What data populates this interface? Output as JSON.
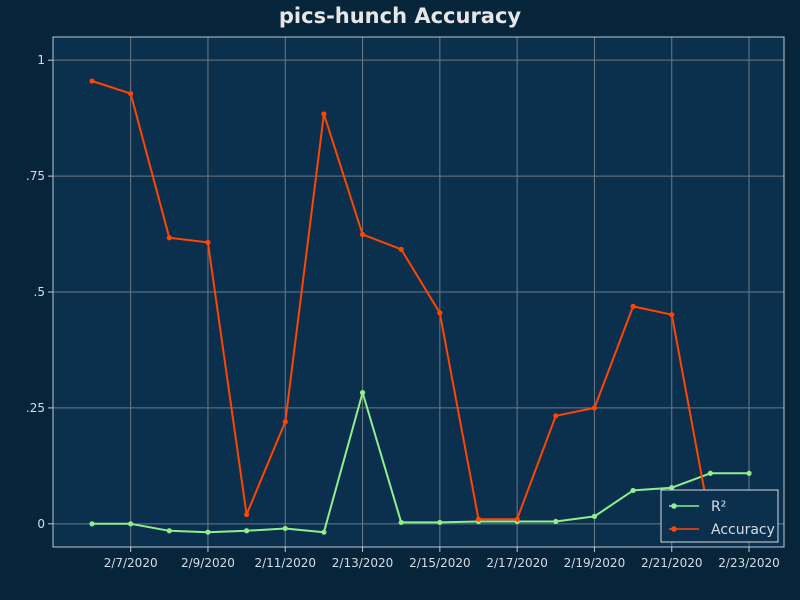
{
  "chart_data": {
    "type": "line",
    "title": "pics-hunch Accuracy",
    "xlabel": "",
    "ylabel": "",
    "x": [
      "2/6/2020",
      "2/7/2020",
      "2/8/2020",
      "2/9/2020",
      "2/10/2020",
      "2/11/2020",
      "2/12/2020",
      "2/13/2020",
      "2/14/2020",
      "2/15/2020",
      "2/16/2020",
      "2/17/2020",
      "2/18/2020",
      "2/19/2020",
      "2/20/2020",
      "2/21/2020",
      "2/22/2020",
      "2/23/2020"
    ],
    "x_tick_labels": [
      "2/7/2020",
      "2/9/2020",
      "2/11/2020",
      "2/13/2020",
      "2/15/2020",
      "2/17/2020",
      "2/19/2020",
      "2/21/2020",
      "2/23/2020"
    ],
    "y_tick_labels": [
      "0",
      ".25",
      ".5",
      ".75",
      "1"
    ],
    "y_ticks": [
      0,
      0.25,
      0.5,
      0.75,
      1
    ],
    "ylim": [
      -0.05,
      1.05
    ],
    "grid": true,
    "legend_position": "bottom-right",
    "series": [
      {
        "name": "R²",
        "color": "#90ee90",
        "values": [
          0.0,
          0.0,
          -0.015,
          -0.018,
          -0.015,
          -0.01,
          -0.018,
          0.283,
          0.003,
          0.003,
          0.005,
          0.005,
          0.005,
          0.016,
          0.072,
          0.078,
          0.109,
          0.109
        ]
      },
      {
        "name": "Accuracy",
        "color": "#ff4500",
        "values": [
          0.955,
          0.928,
          0.617,
          0.607,
          0.02,
          0.22,
          0.884,
          0.624,
          0.592,
          0.455,
          0.01,
          0.01,
          0.233,
          0.25,
          0.469,
          0.451,
          0.002,
          null
        ]
      }
    ]
  },
  "colors": {
    "background": "#06253b",
    "plot_background": "#0b304d",
    "grid": "#6b7a86",
    "axis": "#c0c8d0"
  }
}
